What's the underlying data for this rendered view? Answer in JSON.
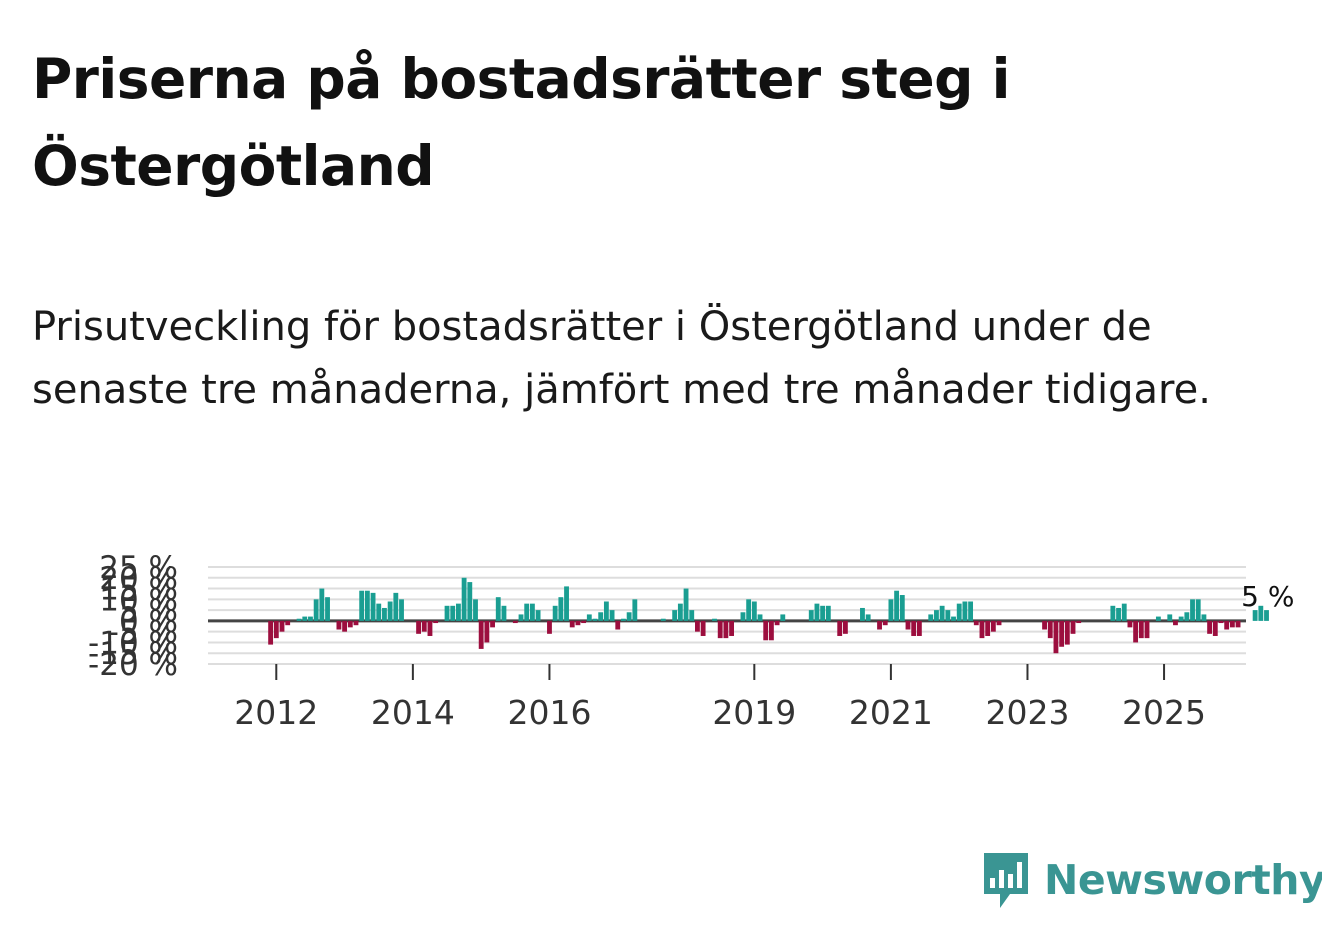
{
  "title": "Priserna på bostadsrätter steg i Östergötland",
  "subtitle": "Prisutveckling för bostadsrätter i Östergötland under de senaste tre månaderna, jämfört med tre månader tidigare.",
  "brand": {
    "name": "Newsworthy",
    "color": "#3a9593"
  },
  "colors": {
    "positive": "#1a9e92",
    "negative": "#9c0e3e",
    "grid": "#dddddd",
    "zero_line": "#444444"
  },
  "chart_data": {
    "type": "bar",
    "title": "Priserna på bostadsrätter steg i Östergötland",
    "xlabel": "",
    "ylabel": "",
    "ylim": [
      -20,
      25
    ],
    "y_ticks": [
      -20,
      -15,
      -10,
      -5,
      0,
      5,
      10,
      15,
      20,
      25
    ],
    "y_tick_labels": [
      "-20 %",
      "-15 %",
      "-10 %",
      "-5 %",
      "0 %",
      "5 %",
      "10 %",
      "15 %",
      "20 %",
      "25 %"
    ],
    "x_start": 2011.0,
    "x_end": 2026.2,
    "x_ticks": [
      2012,
      2014,
      2016,
      2019,
      2021,
      2023,
      2025
    ],
    "x_tick_labels": [
      "2012",
      "2014",
      "2016",
      "2019",
      "2021",
      "2023",
      "2025"
    ],
    "series_start": 2011.917,
    "step_months": 1,
    "unit": "%",
    "annotation": {
      "label": "5 %",
      "value": 5
    },
    "values": [
      -11,
      -8,
      -5,
      -2,
      0,
      1,
      2,
      2,
      10,
      15,
      11,
      0,
      -4,
      -5,
      -3,
      -2,
      14,
      14,
      13,
      8,
      6,
      9,
      13,
      10,
      0,
      0,
      -6,
      -5,
      -7,
      -1,
      0,
      7,
      7,
      8,
      20,
      18,
      10,
      -13,
      -10,
      -3,
      11,
      7,
      0,
      -1,
      3,
      8,
      8,
      5,
      0,
      -6,
      7,
      11,
      16,
      -3,
      -2,
      -1,
      3,
      1,
      4,
      9,
      5,
      -4,
      1,
      4,
      10,
      0,
      0,
      0,
      0,
      1,
      0,
      5,
      8,
      15,
      5,
      -5,
      -7,
      0,
      1,
      -8,
      -8,
      -7,
      0,
      4,
      10,
      9,
      3,
      -9,
      -9,
      -2,
      3,
      0,
      0,
      0,
      0,
      5,
      8,
      7,
      7,
      0,
      -7,
      -6,
      0,
      0,
      6,
      3,
      0,
      -4,
      -2,
      10,
      14,
      12,
      -4,
      -7,
      -7,
      0,
      3,
      5,
      7,
      5,
      2,
      8,
      9,
      9,
      -2,
      -8,
      -7,
      -5,
      -2,
      0,
      0,
      0,
      0,
      0,
      0,
      0,
      -4,
      -8,
      -15,
      -12,
      -11,
      -6,
      -1,
      0,
      0,
      0,
      0,
      0,
      7,
      6,
      8,
      -3,
      -10,
      -8,
      -8,
      0,
      2,
      0,
      3,
      -2,
      2,
      4,
      10,
      10,
      3,
      -6,
      -7,
      -1,
      -4,
      -3,
      -3,
      0,
      0,
      5,
      7,
      5
    ]
  }
}
